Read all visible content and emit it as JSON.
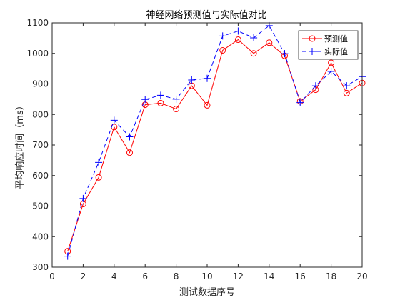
{
  "chart_data": {
    "type": "line",
    "title": "神经网络预测值与实际值对比",
    "xlabel": "测试数据序号",
    "ylabel": "平均响应时间（ms）",
    "xlim": [
      0,
      20
    ],
    "ylim": [
      300,
      1100
    ],
    "xticks": [
      0,
      2,
      4,
      6,
      8,
      10,
      12,
      14,
      16,
      18,
      20
    ],
    "yticks": [
      300,
      400,
      500,
      600,
      700,
      800,
      900,
      1000,
      1100
    ],
    "grid": false,
    "legend_position": "top-right",
    "x": [
      1,
      2,
      3,
      4,
      5,
      6,
      7,
      8,
      9,
      10,
      11,
      12,
      13,
      14,
      15,
      16,
      17,
      18,
      19,
      20
    ],
    "series": [
      {
        "name": "预测值",
        "color": "#ff0000",
        "line": "solid",
        "marker": "circle",
        "values": [
          352,
          507,
          594,
          759,
          675,
          832,
          837,
          818,
          894,
          830,
          1010,
          1045,
          1000,
          1035,
          992,
          843,
          881,
          969,
          870,
          903
        ]
      },
      {
        "name": "实际值",
        "color": "#0000ff",
        "line": "dashed",
        "marker": "plus",
        "values": [
          336,
          525,
          643,
          781,
          727,
          849,
          863,
          850,
          913,
          918,
          1057,
          1073,
          1051,
          1091,
          999,
          839,
          894,
          941,
          894,
          924
        ]
      }
    ]
  }
}
